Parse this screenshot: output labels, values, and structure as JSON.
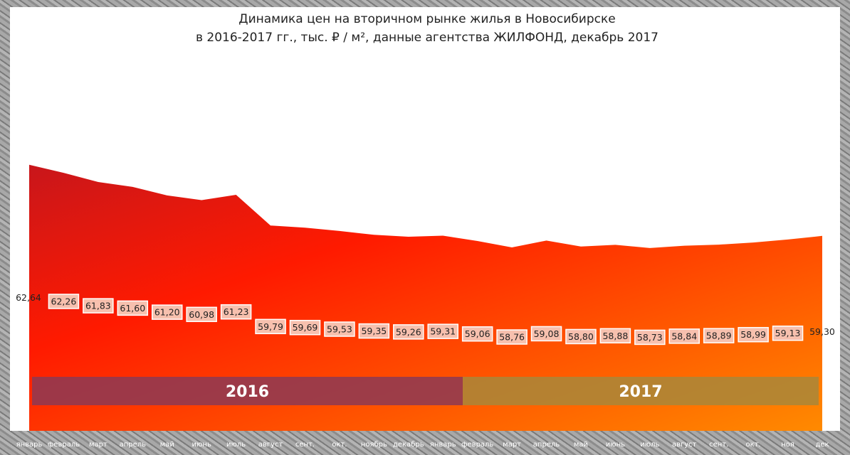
{
  "title_line1": "Динамика цен на вторичном рынке жилья в Новосибирске",
  "title_line2": "в 2016-2017 гг., тыс. ₽ / м², данные агентства ЖИЛФОНД,  декабрь 2017",
  "colors": {
    "gradient_start": "#c8161b",
    "gradient_mid": "#ff1a00",
    "gradient_end": "#ff8a00",
    "band_2016": "#8c3a55",
    "band_2017": "#a8873a"
  },
  "chart_data": {
    "type": "area",
    "title": "Динамика цен на вторичном рынке жилья в Новосибирске в 2016-2017 гг., тыс. ₽ / м², данные агентства ЖИЛФОНД,  декабрь 2017",
    "categories": [
      "январь",
      "февраль",
      "март",
      "апрель",
      "май",
      "июнь",
      "июль",
      "август",
      "сент.",
      "окт.",
      "ноябрь",
      "декабрь",
      "январь",
      "февраль",
      "март",
      "апрель",
      "май",
      "июнь",
      "июль",
      "август",
      "сент.",
      "окт.",
      "ноя",
      "дек"
    ],
    "values": [
      62.64,
      62.26,
      61.83,
      61.6,
      61.2,
      60.98,
      61.23,
      59.79,
      59.69,
      59.53,
      59.35,
      59.26,
      59.31,
      59.06,
      58.76,
      59.08,
      58.8,
      58.88,
      58.73,
      58.84,
      58.89,
      58.99,
      59.13,
      59.3
    ],
    "value_labels": [
      "62,64",
      "62,26",
      "61,83",
      "61,60",
      "61,20",
      "60,98",
      "61,23",
      "59,79",
      "59,69",
      "59,53",
      "59,35",
      "59,26",
      "59,31",
      "59,06",
      "58,76",
      "59,08",
      "58,80",
      "58,88",
      "58,73",
      "58,84",
      "58,89",
      "58,99",
      "59,13",
      "59,30"
    ],
    "groups": [
      {
        "label": "2016",
        "from": 0,
        "to": 11
      },
      {
        "label": "2017",
        "from": 12,
        "to": 23
      }
    ],
    "xlabel": "",
    "ylabel": "",
    "grid": false,
    "legend": "none"
  }
}
